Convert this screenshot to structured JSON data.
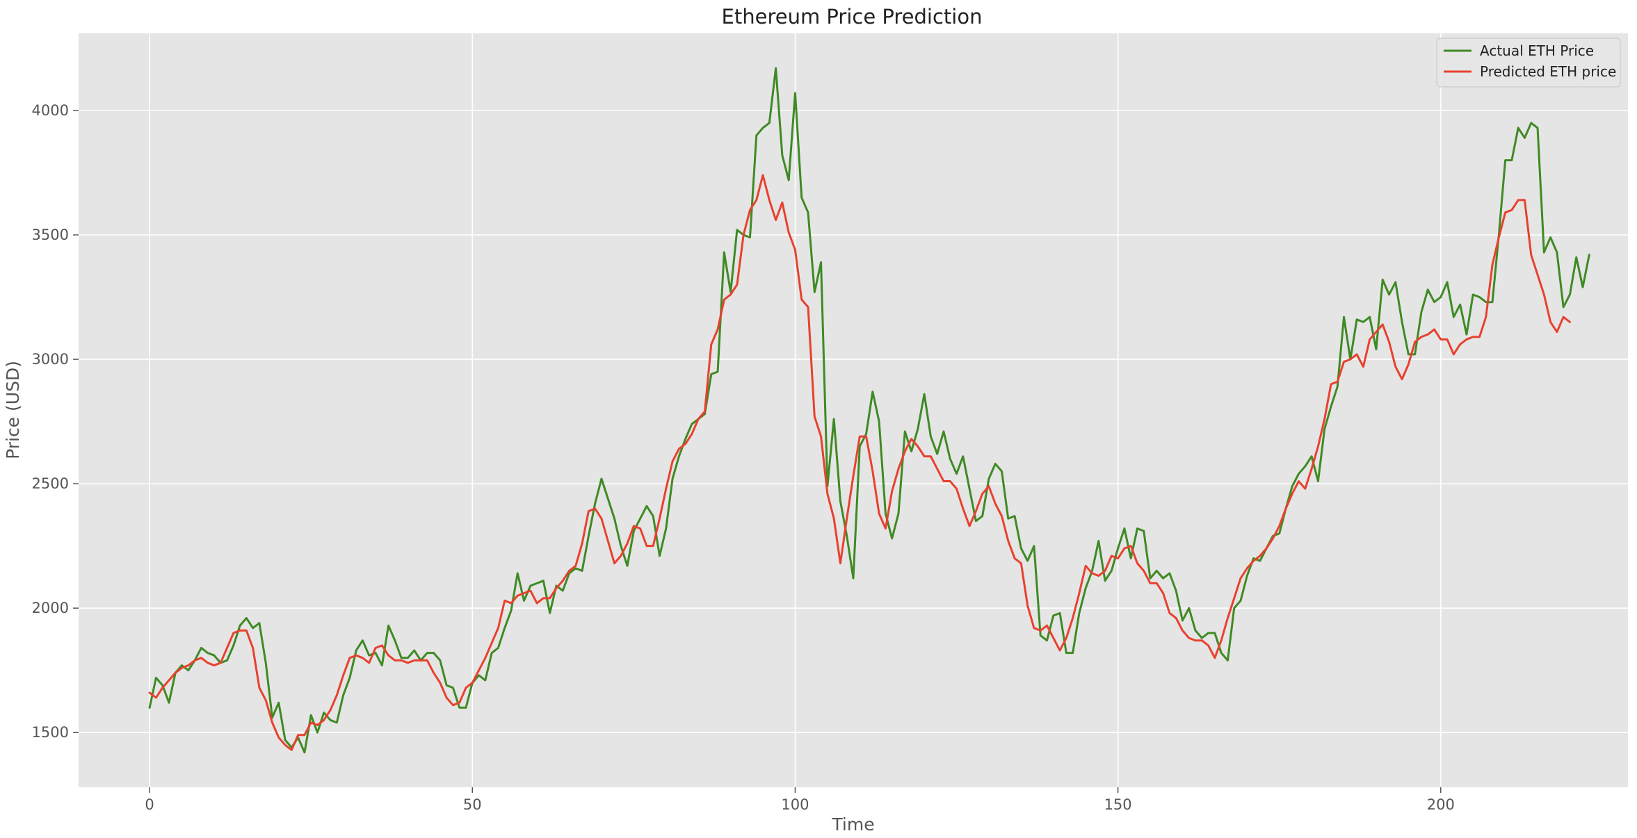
{
  "chart_data": {
    "type": "line",
    "title": "Ethereum Price Prediction",
    "xlabel": "Time",
    "ylabel": "Price (USD)",
    "xlim": [
      -11,
      229
    ],
    "ylim": [
      1280,
      4310
    ],
    "xticks": [
      0,
      50,
      100,
      150,
      200
    ],
    "yticks": [
      1500,
      2000,
      2500,
      3000,
      3500,
      4000
    ],
    "grid": true,
    "legend_position": "top-right",
    "colors": {
      "background": "#e5e5e5",
      "actual": "#3f8a24",
      "predicted": "#e8412f"
    },
    "series": [
      {
        "name": "Actual ETH Price",
        "color": "#3f8a24",
        "values": [
          1600,
          1720,
          1690,
          1620,
          1740,
          1770,
          1750,
          1790,
          1840,
          1820,
          1810,
          1780,
          1790,
          1850,
          1930,
          1960,
          1920,
          1940,
          1780,
          1560,
          1620,
          1470,
          1440,
          1480,
          1420,
          1570,
          1500,
          1580,
          1550,
          1540,
          1650,
          1720,
          1830,
          1870,
          1810,
          1820,
          1770,
          1930,
          1870,
          1800,
          1800,
          1830,
          1790,
          1820,
          1820,
          1790,
          1690,
          1680,
          1600,
          1600,
          1700,
          1730,
          1710,
          1820,
          1840,
          1920,
          1990,
          2140,
          2030,
          2090,
          2100,
          2110,
          1980,
          2090,
          2070,
          2140,
          2160,
          2150,
          2290,
          2420,
          2520,
          2440,
          2360,
          2250,
          2170,
          2310,
          2360,
          2410,
          2370,
          2210,
          2320,
          2520,
          2610,
          2680,
          2740,
          2760,
          2780,
          2940,
          2950,
          3430,
          3270,
          3520,
          3500,
          3490,
          3900,
          3930,
          3950,
          4170,
          3820,
          3720,
          4070,
          3650,
          3590,
          3270,
          3390,
          2490,
          2760,
          2430,
          2290,
          2120,
          2650,
          2700,
          2870,
          2750,
          2380,
          2280,
          2380,
          2710,
          2630,
          2720,
          2860,
          2690,
          2620,
          2710,
          2600,
          2540,
          2610,
          2480,
          2350,
          2370,
          2520,
          2580,
          2550,
          2360,
          2370,
          2240,
          2190,
          2250,
          1890,
          1870,
          1970,
          1980,
          1820,
          1820,
          1980,
          2080,
          2150,
          2270,
          2110,
          2150,
          2240,
          2320,
          2200,
          2320,
          2310,
          2120,
          2150,
          2120,
          2140,
          2070,
          1950,
          2000,
          1910,
          1880,
          1900,
          1900,
          1820,
          1790,
          2000,
          2030,
          2130,
          2200,
          2190,
          2240,
          2290,
          2300,
          2400,
          2490,
          2540,
          2570,
          2610,
          2510,
          2720,
          2810,
          2890,
          3170,
          3000,
          3160,
          3150,
          3170,
          3040,
          3320,
          3260,
          3310,
          3150,
          3020,
          3020,
          3190,
          3280,
          3230,
          3250,
          3310,
          3170,
          3220,
          3100,
          3260,
          3250,
          3230,
          3230,
          3500,
          3800,
          3800,
          3930,
          3890,
          3950,
          3930,
          3430,
          3490,
          3430,
          3210,
          3260,
          3410,
          3290,
          3420
        ]
      },
      {
        "name": "Predicted ETH price",
        "color": "#e8412f",
        "values": [
          1660,
          1640,
          1680,
          1710,
          1740,
          1760,
          1770,
          1790,
          1800,
          1780,
          1770,
          1780,
          1840,
          1900,
          1910,
          1910,
          1840,
          1680,
          1630,
          1540,
          1480,
          1450,
          1430,
          1490,
          1490,
          1540,
          1530,
          1550,
          1590,
          1650,
          1730,
          1800,
          1810,
          1800,
          1780,
          1840,
          1850,
          1810,
          1790,
          1790,
          1780,
          1790,
          1790,
          1790,
          1740,
          1700,
          1640,
          1610,
          1620,
          1680,
          1700,
          1750,
          1800,
          1860,
          1920,
          2030,
          2020,
          2050,
          2060,
          2070,
          2020,
          2040,
          2040,
          2080,
          2110,
          2150,
          2170,
          2260,
          2390,
          2400,
          2360,
          2270,
          2180,
          2210,
          2260,
          2330,
          2320,
          2250,
          2250,
          2360,
          2480,
          2590,
          2640,
          2660,
          2700,
          2760,
          2790,
          3060,
          3120,
          3240,
          3260,
          3300,
          3500,
          3600,
          3640,
          3740,
          3640,
          3560,
          3630,
          3510,
          3440,
          3240,
          3210,
          2770,
          2690,
          2460,
          2360,
          2180,
          2360,
          2530,
          2690,
          2690,
          2550,
          2380,
          2320,
          2470,
          2560,
          2630,
          2680,
          2650,
          2610,
          2610,
          2560,
          2510,
          2510,
          2480,
          2400,
          2330,
          2390,
          2460,
          2490,
          2420,
          2370,
          2270,
          2200,
          2180,
          2010,
          1920,
          1910,
          1930,
          1880,
          1830,
          1880,
          1960,
          2060,
          2170,
          2140,
          2130,
          2150,
          2210,
          2200,
          2240,
          2250,
          2180,
          2150,
          2100,
          2100,
          2060,
          1980,
          1960,
          1910,
          1880,
          1870,
          1870,
          1850,
          1800,
          1870,
          1960,
          2040,
          2120,
          2160,
          2190,
          2210,
          2240,
          2280,
          2330,
          2400,
          2460,
          2510,
          2480,
          2560,
          2650,
          2760,
          2900,
          2910,
          2990,
          3000,
          3020,
          2970,
          3080,
          3110,
          3140,
          3070,
          2970,
          2920,
          2980,
          3070,
          3090,
          3100,
          3120,
          3080,
          3080,
          3020,
          3060,
          3080,
          3090,
          3090,
          3170,
          3380,
          3490,
          3590,
          3600,
          3640,
          3640,
          3420,
          3340,
          3260,
          3150,
          3110,
          3170,
          3150
        ]
      }
    ]
  }
}
